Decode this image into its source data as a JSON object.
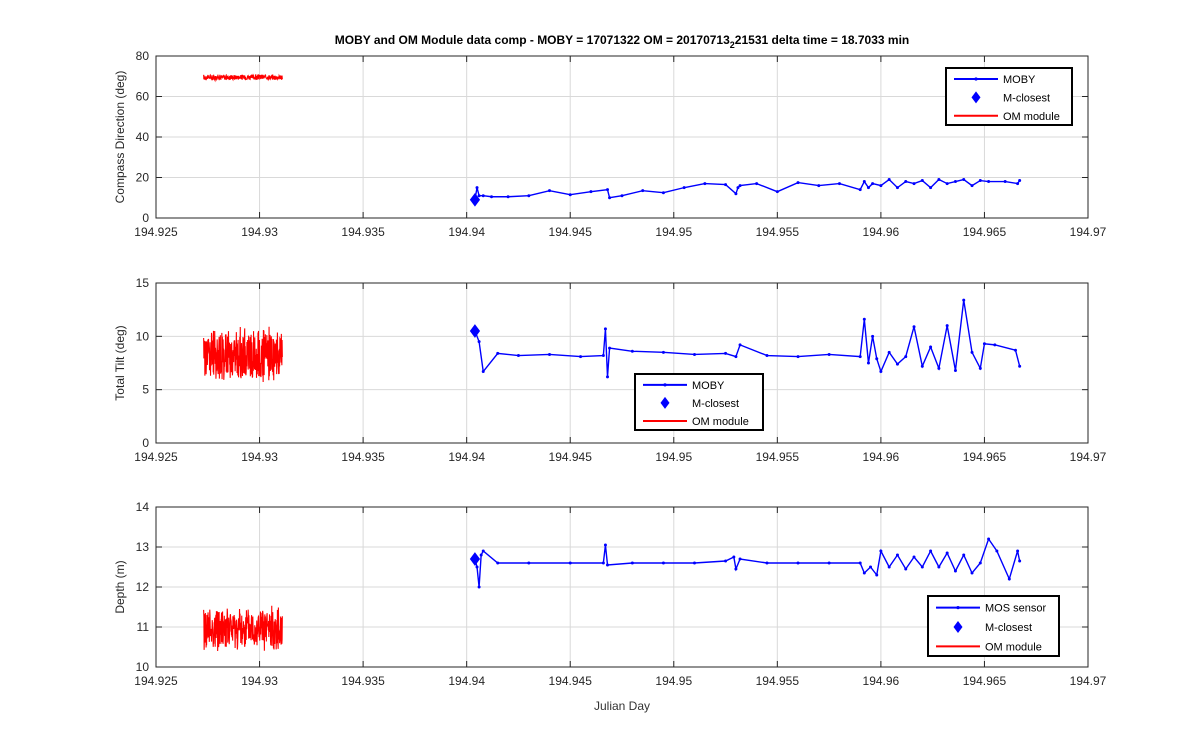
{
  "figure": {
    "title_main": "MOBY and OM Module data comp - MOBY = 17071322 OM = 20170713",
    "title_sub": "2",
    "title_rest": "21531 delta time = 18.7033 min",
    "xlabel": "Julian Day"
  },
  "colors": {
    "moby": "#0000ff",
    "om": "#ff0000",
    "grid": "#d9d9d9",
    "axis": "#000000"
  },
  "chart_data": [
    {
      "type": "line",
      "ylabel": "Compass Direction (deg)",
      "xlim": [
        194.925,
        194.97
      ],
      "ylim": [
        0,
        80
      ],
      "xticks": [
        194.925,
        194.93,
        194.935,
        194.94,
        194.945,
        194.95,
        194.955,
        194.96,
        194.965,
        194.97
      ],
      "xtick_labels": [
        "194.925",
        "194.93",
        "194.935",
        "194.94",
        "194.945",
        "194.95",
        "194.955",
        "194.96",
        "194.965",
        "194.97"
      ],
      "yticks": [
        0,
        20,
        40,
        60,
        80
      ],
      "ytick_labels": [
        "0",
        "20",
        "40",
        "60",
        "80"
      ],
      "grid": true,
      "legend_position": "top-right",
      "legend": [
        "MOBY",
        "M-closest",
        "OM module"
      ],
      "moby_x": [
        194.9404,
        194.9405,
        194.9406,
        194.9408,
        194.9412,
        194.942,
        194.943,
        194.944,
        194.945,
        194.946,
        194.9468,
        194.9469,
        194.9475,
        194.9485,
        194.9495,
        194.9505,
        194.9515,
        194.9525,
        194.953,
        194.9531,
        194.9532,
        194.954,
        194.955,
        194.956,
        194.957,
        194.958,
        194.959,
        194.9592,
        194.9594,
        194.9596,
        194.96,
        194.9604,
        194.9608,
        194.9612,
        194.9616,
        194.962,
        194.9624,
        194.9628,
        194.9632,
        194.9636,
        194.964,
        194.9644,
        194.9648,
        194.9652,
        194.966,
        194.9666,
        194.9667
      ],
      "moby_y": [
        9,
        15,
        11,
        11,
        10.5,
        10.5,
        11,
        13.5,
        11.5,
        13,
        14,
        10,
        11,
        13.5,
        12.5,
        15,
        17,
        16.5,
        12,
        15,
        16,
        17,
        13,
        17.5,
        16,
        17,
        14,
        18,
        15,
        17,
        16,
        19,
        15,
        18,
        17,
        18.5,
        15,
        19,
        17,
        18,
        19,
        16,
        18.5,
        18,
        18,
        17,
        18.5
      ],
      "om_y_mean": 69.5,
      "om_y_amp": 1.6,
      "om_x_range": [
        194.9273,
        194.9311
      ],
      "m_closest": [
        194.9404,
        9
      ]
    },
    {
      "type": "line",
      "ylabel": "Total Tilt (deg)",
      "xlim": [
        194.925,
        194.97
      ],
      "ylim": [
        0,
        15
      ],
      "xticks": [
        194.925,
        194.93,
        194.935,
        194.94,
        194.945,
        194.95,
        194.955,
        194.96,
        194.965,
        194.97
      ],
      "xtick_labels": [
        "194.925",
        "194.93",
        "194.935",
        "194.94",
        "194.945",
        "194.95",
        "194.955",
        "194.96",
        "194.965",
        "194.97"
      ],
      "yticks": [
        0,
        5,
        10,
        15
      ],
      "ytick_labels": [
        "0",
        "5",
        "10",
        "15"
      ],
      "grid": true,
      "legend_position": "center",
      "legend": [
        "MOBY",
        "M-closest",
        "OM module"
      ],
      "moby_x": [
        194.9404,
        194.9406,
        194.9408,
        194.9415,
        194.9425,
        194.944,
        194.9455,
        194.9466,
        194.9467,
        194.9468,
        194.9469,
        194.948,
        194.9495,
        194.951,
        194.9525,
        194.953,
        194.9532,
        194.9545,
        194.956,
        194.9575,
        194.959,
        194.9592,
        194.9594,
        194.9596,
        194.9598,
        194.96,
        194.9604,
        194.9608,
        194.9612,
        194.9616,
        194.962,
        194.9624,
        194.9628,
        194.9632,
        194.9636,
        194.964,
        194.9644,
        194.9648,
        194.965,
        194.9655,
        194.9665,
        194.9667
      ],
      "moby_y": [
        10.5,
        9.5,
        6.7,
        8.4,
        8.2,
        8.3,
        8.1,
        8.2,
        10.7,
        6.2,
        8.9,
        8.6,
        8.5,
        8.3,
        8.4,
        8.1,
        9.2,
        8.2,
        8.1,
        8.3,
        8.1,
        11.6,
        7.5,
        10,
        7.9,
        6.7,
        8.5,
        7.4,
        8.1,
        10.9,
        7.2,
        9,
        7,
        11,
        6.8,
        13.4,
        8.5,
        7,
        9.3,
        9.2,
        8.7,
        7.2
      ],
      "om_y_mean": 8.2,
      "om_y_amp": 2.8,
      "om_x_range": [
        194.9273,
        194.9311
      ],
      "m_closest": [
        194.9404,
        10.5
      ]
    },
    {
      "type": "line",
      "ylabel": "Depth (m)",
      "xlim": [
        194.925,
        194.97
      ],
      "ylim": [
        10,
        14
      ],
      "xticks": [
        194.925,
        194.93,
        194.935,
        194.94,
        194.945,
        194.95,
        194.955,
        194.96,
        194.965,
        194.97
      ],
      "xtick_labels": [
        "194.925",
        "194.93",
        "194.935",
        "194.94",
        "194.945",
        "194.95",
        "194.955",
        "194.96",
        "194.965",
        "194.97"
      ],
      "yticks": [
        10,
        11,
        12,
        13,
        14
      ],
      "ytick_labels": [
        "10",
        "11",
        "12",
        "13",
        "14"
      ],
      "grid": true,
      "legend_position": "bottom-right",
      "legend": [
        "MOS sensor",
        "M-closest",
        "OM module"
      ],
      "moby_x": [
        194.9404,
        194.9405,
        194.9406,
        194.9407,
        194.9408,
        194.9415,
        194.943,
        194.945,
        194.9466,
        194.9467,
        194.9468,
        194.948,
        194.9495,
        194.951,
        194.9525,
        194.9529,
        194.953,
        194.9532,
        194.9545,
        194.956,
        194.9575,
        194.959,
        194.9592,
        194.9595,
        194.9598,
        194.96,
        194.9604,
        194.9608,
        194.9612,
        194.9616,
        194.962,
        194.9624,
        194.9628,
        194.9632,
        194.9636,
        194.964,
        194.9644,
        194.9648,
        194.9652,
        194.9656,
        194.9662,
        194.9666,
        194.9667
      ],
      "moby_y": [
        12.7,
        12.5,
        12.0,
        12.8,
        12.9,
        12.6,
        12.6,
        12.6,
        12.6,
        13.05,
        12.55,
        12.6,
        12.6,
        12.6,
        12.65,
        12.75,
        12.45,
        12.7,
        12.6,
        12.6,
        12.6,
        12.6,
        12.35,
        12.5,
        12.3,
        12.9,
        12.5,
        12.8,
        12.45,
        12.75,
        12.5,
        12.9,
        12.5,
        12.85,
        12.4,
        12.8,
        12.35,
        12.6,
        13.2,
        12.9,
        12.2,
        12.9,
        12.65
      ],
      "om_y_mean": 10.95,
      "om_y_amp": 0.6,
      "om_x_range": [
        194.9273,
        194.9311
      ],
      "m_closest": [
        194.9404,
        12.7
      ]
    }
  ]
}
